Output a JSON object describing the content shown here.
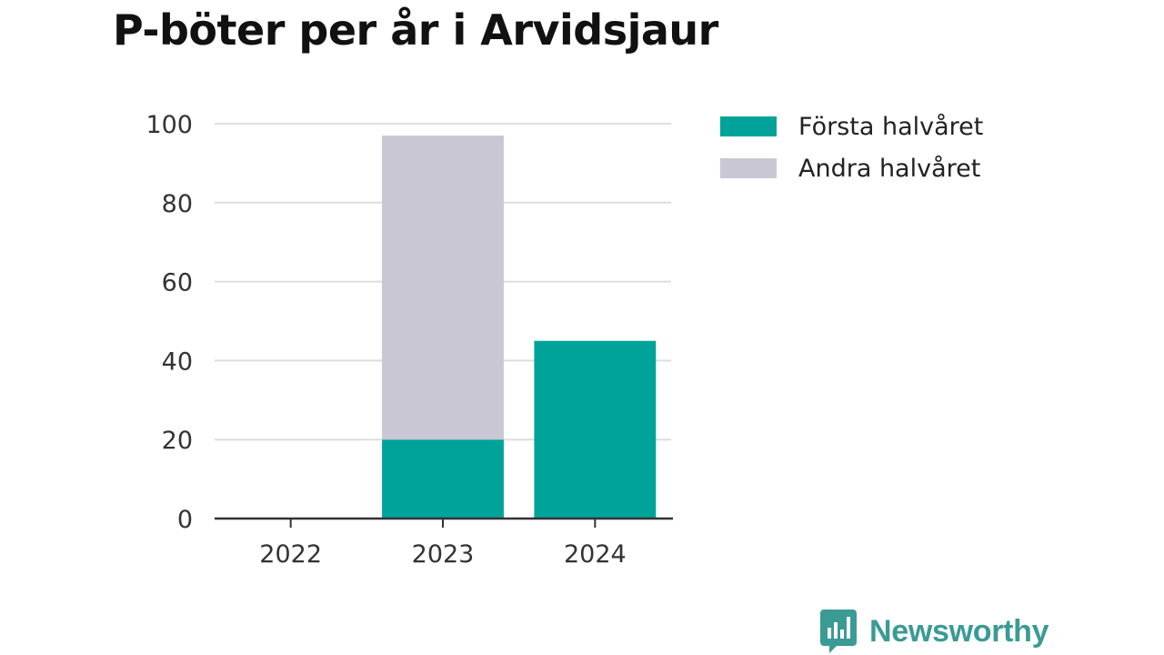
{
  "colors": {
    "first_half": "#00a39a",
    "second_half": "#c8c7d3",
    "logo": "#3a9b94",
    "grid": "#dddddd",
    "axis": "#333333"
  },
  "chart_data": {
    "type": "bar",
    "stacked": true,
    "title": "P-böter per år i Arvidsjaur",
    "categories": [
      "2022",
      "2023",
      "2024"
    ],
    "series": [
      {
        "name": "Första halvåret",
        "values": [
          0,
          20,
          45
        ]
      },
      {
        "name": "Andra halvåret",
        "values": [
          0,
          77,
          0
        ]
      }
    ],
    "ylim": [
      0,
      100
    ],
    "yticks": [
      0,
      20,
      40,
      60,
      80,
      100
    ],
    "grid": true,
    "legend": "top-right"
  },
  "brand": {
    "name": "Newsworthy",
    "icon": "newsworthy-logo-icon"
  }
}
